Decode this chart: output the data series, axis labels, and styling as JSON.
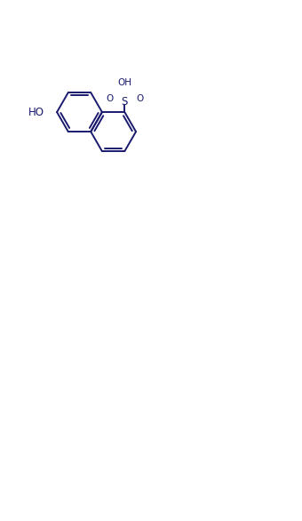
{
  "color": "#1a1a6e",
  "bg": "#ffffff",
  "lw": 1.4,
  "fs": 8.5,
  "BL": 0.33
}
